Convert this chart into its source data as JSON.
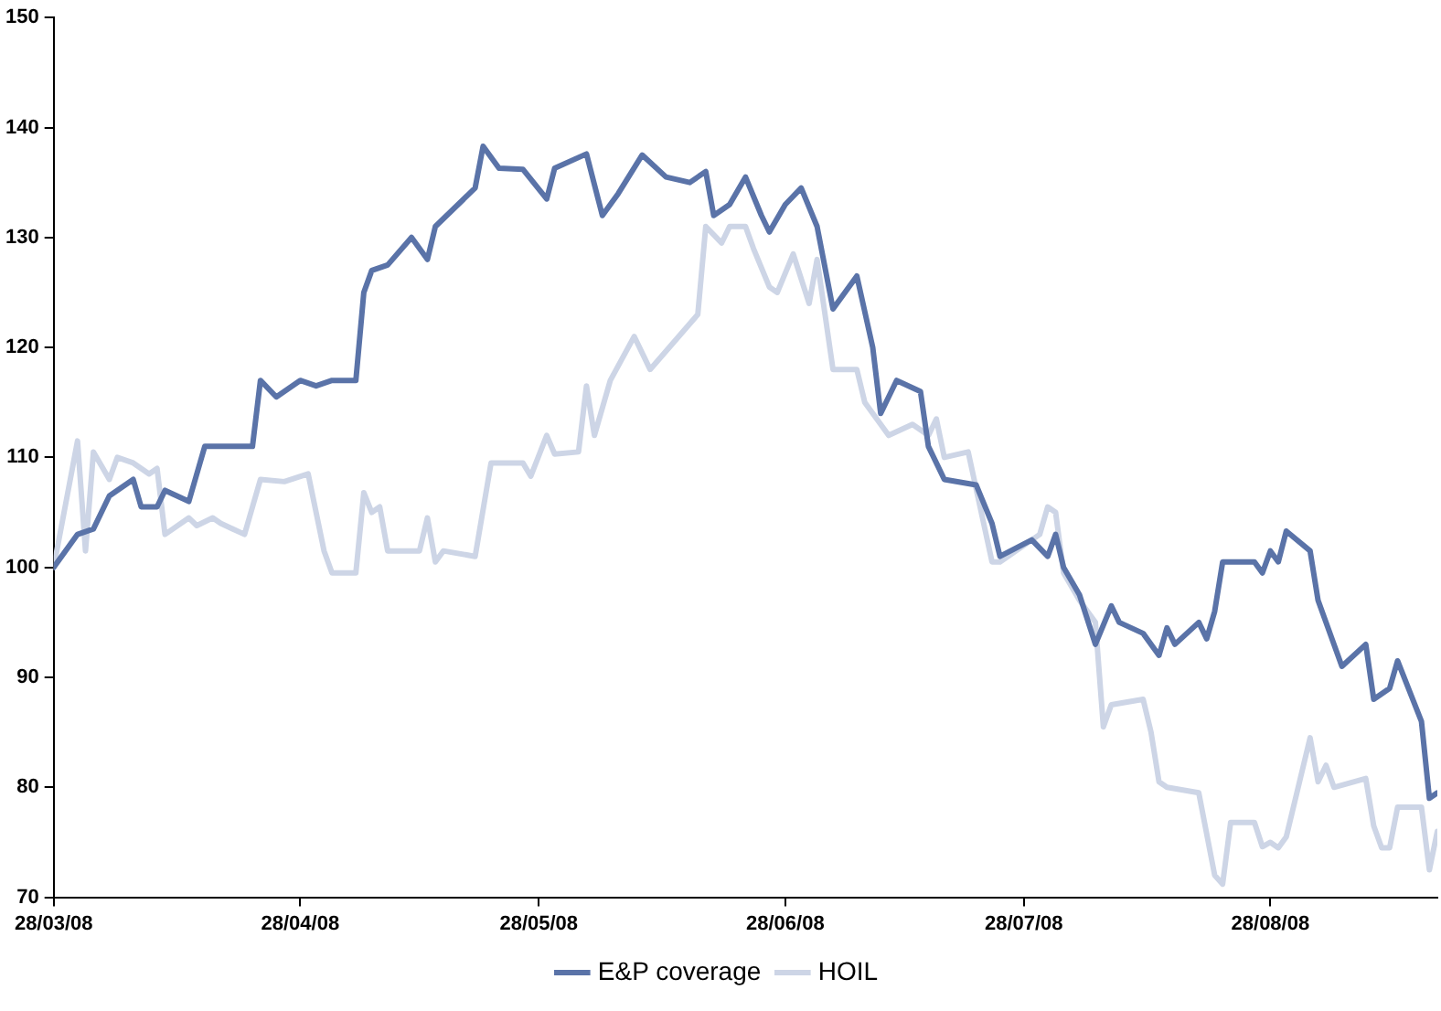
{
  "chart_data": {
    "type": "line",
    "xlim": [
      "2008-03-28",
      "2008-09-18"
    ],
    "xticks": [
      {
        "value": "2008-03-28",
        "label": "28/03/08"
      },
      {
        "value": "2008-04-28",
        "label": "28/04/08"
      },
      {
        "value": "2008-05-28",
        "label": "28/05/08"
      },
      {
        "value": "2008-06-28",
        "label": "28/06/08"
      },
      {
        "value": "2008-07-28",
        "label": "28/07/08"
      },
      {
        "value": "2008-08-28",
        "label": "28/08/08"
      }
    ],
    "ylim": [
      70,
      150
    ],
    "yticks": [
      70,
      80,
      90,
      100,
      110,
      120,
      130,
      140,
      150
    ],
    "grid": false,
    "legend": "bottom",
    "marker": "none",
    "line_style": "solid",
    "series": [
      {
        "name": "E&P coverage",
        "color": "#5a73a8",
        "x": [
          "2008-03-28",
          "2008-03-31",
          "2008-04-02",
          "2008-04-04",
          "2008-04-07",
          "2008-04-08",
          "2008-04-10",
          "2008-04-11",
          "2008-04-14",
          "2008-04-16",
          "2008-04-18",
          "2008-04-22",
          "2008-04-23",
          "2008-04-25",
          "2008-04-28",
          "2008-04-30",
          "2008-05-02",
          "2008-05-05",
          "2008-05-06",
          "2008-05-07",
          "2008-05-09",
          "2008-05-12",
          "2008-05-14",
          "2008-05-15",
          "2008-05-20",
          "2008-05-21",
          "2008-05-23",
          "2008-05-26",
          "2008-05-29",
          "2008-05-30",
          "2008-06-03",
          "2008-06-05",
          "2008-06-07",
          "2008-06-10",
          "2008-06-13",
          "2008-06-16",
          "2008-06-18",
          "2008-06-19",
          "2008-06-21",
          "2008-06-23",
          "2008-06-25",
          "2008-06-26",
          "2008-06-28",
          "2008-06-30",
          "2008-07-02",
          "2008-07-04",
          "2008-07-07",
          "2008-07-09",
          "2008-07-10",
          "2008-07-12",
          "2008-07-15",
          "2008-07-16",
          "2008-07-18",
          "2008-07-22",
          "2008-07-24",
          "2008-07-25",
          "2008-07-29",
          "2008-07-31",
          "2008-08-01",
          "2008-08-02",
          "2008-08-04",
          "2008-08-06",
          "2008-08-08",
          "2008-08-09",
          "2008-08-12",
          "2008-08-14",
          "2008-08-15",
          "2008-08-16",
          "2008-08-19",
          "2008-08-20",
          "2008-08-21",
          "2008-08-22",
          "2008-08-26",
          "2008-08-27",
          "2008-08-28",
          "2008-08-29",
          "2008-08-30",
          "2008-09-02",
          "2008-09-03",
          "2008-09-06",
          "2008-09-09",
          "2008-09-10",
          "2008-09-12",
          "2008-09-13",
          "2008-09-16",
          "2008-09-17",
          "2008-09-18"
        ],
        "values": [
          100,
          103,
          103.5,
          106.5,
          108,
          105.5,
          105.5,
          107,
          106,
          111,
          111,
          111,
          117,
          115.5,
          117,
          116.5,
          117,
          117,
          125,
          127,
          127.5,
          130,
          128,
          131,
          134.5,
          138.3,
          136.3,
          136.2,
          133.5,
          136.3,
          137.6,
          132,
          134,
          137.5,
          135.5,
          135,
          136,
          132,
          133,
          135.5,
          132,
          130.5,
          133,
          134.5,
          131,
          123.5,
          126.5,
          120,
          114,
          117,
          116,
          111,
          108,
          107.5,
          104,
          101,
          102.5,
          101,
          103,
          100,
          97.5,
          93,
          96.5,
          95,
          94,
          92,
          94.5,
          93,
          95,
          93.5,
          96,
          100.5,
          100.5,
          99.5,
          101.5,
          100.5,
          103.3,
          101.5,
          97,
          91,
          93,
          88,
          89,
          91.5,
          86,
          79,
          79.5
        ]
      },
      {
        "name": "HOIL",
        "color": "#cdd5e6",
        "x": [
          "2008-03-28",
          "2008-03-31",
          "2008-04-01",
          "2008-04-02",
          "2008-04-04",
          "2008-04-05",
          "2008-04-07",
          "2008-04-09",
          "2008-04-10",
          "2008-04-11",
          "2008-04-14",
          "2008-04-15",
          "2008-04-17",
          "2008-04-18",
          "2008-04-21",
          "2008-04-23",
          "2008-04-26",
          "2008-04-29",
          "2008-05-01",
          "2008-05-02",
          "2008-05-05",
          "2008-05-06",
          "2008-05-07",
          "2008-05-08",
          "2008-05-09",
          "2008-05-13",
          "2008-05-14",
          "2008-05-15",
          "2008-05-16",
          "2008-05-20",
          "2008-05-22",
          "2008-05-26",
          "2008-05-27",
          "2008-05-29",
          "2008-05-30",
          "2008-06-02",
          "2008-06-03",
          "2008-06-04",
          "2008-06-06",
          "2008-06-09",
          "2008-06-11",
          "2008-06-17",
          "2008-06-18",
          "2008-06-20",
          "2008-06-21",
          "2008-06-23",
          "2008-06-24",
          "2008-06-26",
          "2008-06-27",
          "2008-06-29",
          "2008-07-01",
          "2008-07-02",
          "2008-07-04",
          "2008-07-07",
          "2008-07-08",
          "2008-07-11",
          "2008-07-14",
          "2008-07-16",
          "2008-07-17",
          "2008-07-18",
          "2008-07-21",
          "2008-07-24",
          "2008-07-25",
          "2008-07-30",
          "2008-07-31",
          "2008-08-01",
          "2008-08-02",
          "2008-08-04",
          "2008-08-06",
          "2008-08-07",
          "2008-08-08",
          "2008-08-12",
          "2008-08-13",
          "2008-08-14",
          "2008-08-15",
          "2008-08-19",
          "2008-08-21",
          "2008-08-22",
          "2008-08-23",
          "2008-08-26",
          "2008-08-27",
          "2008-08-28",
          "2008-08-29",
          "2008-08-30",
          "2008-09-02",
          "2008-09-03",
          "2008-09-04",
          "2008-09-05",
          "2008-09-09",
          "2008-09-10",
          "2008-09-11",
          "2008-09-12",
          "2008-09-13",
          "2008-09-16",
          "2008-09-17",
          "2008-09-18"
        ],
        "values": [
          100,
          111.5,
          101.5,
          110.5,
          108,
          110,
          109.5,
          108.5,
          109,
          103,
          104.5,
          103.8,
          104.5,
          104,
          103,
          108,
          107.8,
          108.5,
          101.5,
          99.5,
          99.5,
          106.8,
          105,
          105.5,
          101.5,
          101.5,
          104.5,
          100.5,
          101.5,
          101,
          109.5,
          109.5,
          108.3,
          112,
          110.3,
          110.5,
          116.5,
          112,
          117,
          121,
          118,
          123,
          131,
          129.5,
          131,
          131,
          129,
          125.5,
          125,
          128.5,
          124,
          128,
          118,
          118,
          115,
          112,
          113,
          112,
          113.5,
          110,
          110.5,
          100.5,
          100.5,
          103,
          105.5,
          105,
          99.5,
          97,
          95,
          85.5,
          87.5,
          88,
          85,
          80.5,
          80,
          79.5,
          72,
          71.2,
          76.8,
          76.8,
          74.6,
          75,
          74.5,
          75.5,
          84.5,
          80.5,
          82,
          80,
          80.8,
          76.5,
          74.5,
          74.5,
          78.2,
          78.2,
          72.5,
          76
        ]
      }
    ]
  }
}
